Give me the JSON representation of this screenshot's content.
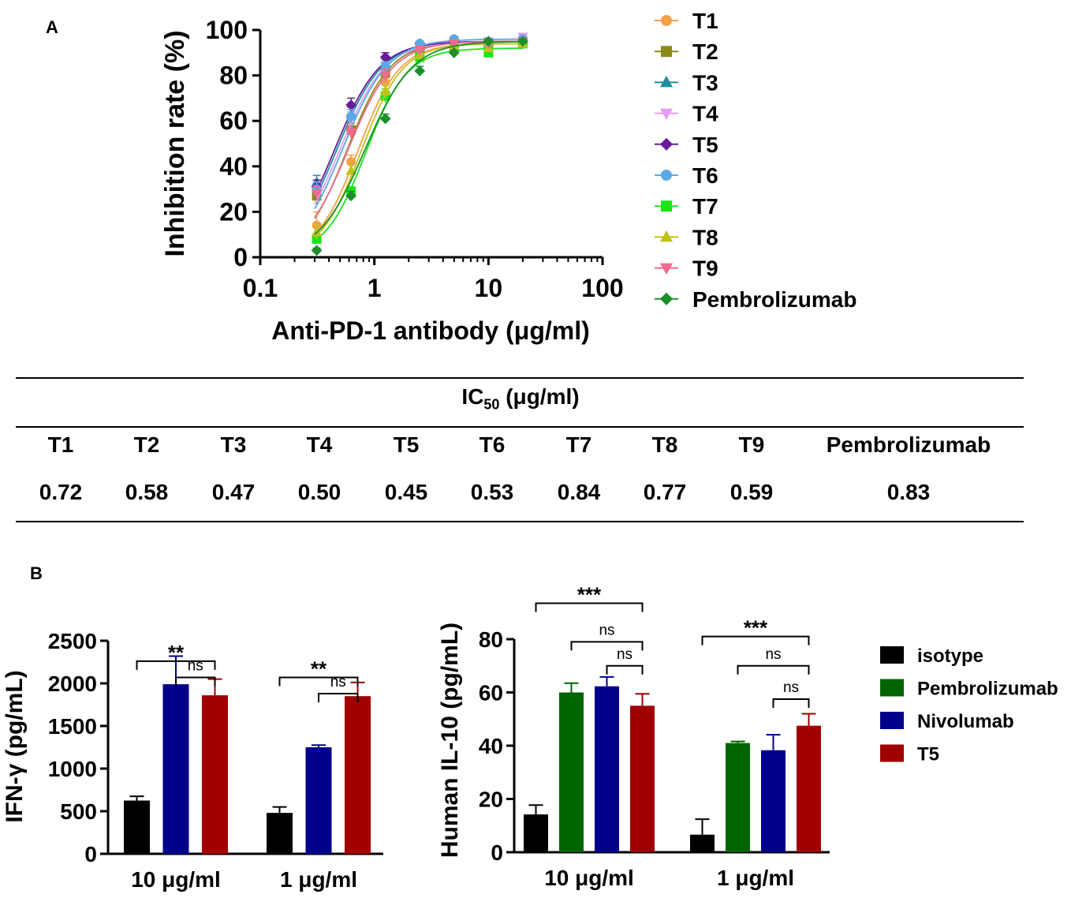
{
  "panel_labels": {
    "a": "A",
    "b": "B"
  },
  "ic50_table": {
    "title_prefix": "IC",
    "title_sub": "50",
    "title_suffix": " (μg/ml)",
    "headers": [
      "T1",
      "T2",
      "T3",
      "T4",
      "T5",
      "T6",
      "T7",
      "T8",
      "T9",
      "Pembrolizumab"
    ],
    "values": [
      "0.72",
      "0.58",
      "0.47",
      "0.50",
      "0.45",
      "0.53",
      "0.84",
      "0.77",
      "0.59",
      "0.83"
    ]
  },
  "chart_data": [
    {
      "type": "line",
      "panel": "A",
      "xlabel": "Anti-PD-1 antibody (μg/ml)",
      "ylabel": "Inhibition rate (%)",
      "xscale": "log",
      "xlim": [
        0.1,
        100
      ],
      "ylim": [
        0,
        100
      ],
      "xticks": [
        "0.1",
        "1",
        "10",
        "100"
      ],
      "yticks": [
        "0",
        "20",
        "40",
        "60",
        "80",
        "100"
      ],
      "x": [
        0.3125,
        0.625,
        1.25,
        2.5,
        5,
        10,
        20
      ],
      "legend_position": "right",
      "series": [
        {
          "name": "T1",
          "color": "#f5a04b",
          "marker": "circle",
          "ec50": 0.72,
          "top": 94,
          "hill": 2.4,
          "values": [
            14,
            42,
            77,
            91,
            93,
            91,
            94
          ],
          "errors": [
            6,
            3,
            4,
            2,
            1,
            1,
            1
          ]
        },
        {
          "name": "T2",
          "color": "#8b8b17",
          "marker": "square",
          "ec50": 0.58,
          "top": 95,
          "hill": 2.3,
          "values": [
            27,
            56,
            81,
            91,
            94,
            94,
            95
          ],
          "errors": [
            4,
            3,
            3,
            2,
            1,
            1,
            1
          ]
        },
        {
          "name": "T3",
          "color": "#1f8fa0",
          "marker": "triangle-up",
          "ec50": 0.47,
          "top": 95,
          "hill": 2.2,
          "values": [
            33,
            63,
            85,
            93,
            96,
            95,
            96
          ],
          "errors": [
            3,
            3,
            2,
            1,
            1,
            1,
            1
          ]
        },
        {
          "name": "T4",
          "color": "#e39ff0",
          "marker": "triangle-down",
          "ec50": 0.5,
          "top": 95,
          "hill": 2.2,
          "values": [
            30,
            61,
            84,
            93,
            95,
            95,
            97
          ],
          "errors": [
            3,
            3,
            2,
            1,
            1,
            1,
            1
          ]
        },
        {
          "name": "T5",
          "color": "#6a1b9a",
          "marker": "diamond",
          "ec50": 0.45,
          "top": 95,
          "hill": 2.2,
          "values": [
            31,
            67,
            88,
            94,
            95,
            95,
            95
          ],
          "errors": [
            3,
            3,
            2,
            1,
            1,
            1,
            1
          ]
        },
        {
          "name": "T6",
          "color": "#5aa9e6",
          "marker": "circle",
          "ec50": 0.53,
          "top": 96,
          "hill": 2.2,
          "values": [
            30,
            62,
            84,
            94,
            96,
            94,
            96
          ],
          "errors": [
            3,
            3,
            2,
            1,
            1,
            1,
            1
          ]
        },
        {
          "name": "T7",
          "color": "#19e619",
          "marker": "square",
          "ec50": 0.84,
          "top": 92,
          "hill": 2.4,
          "values": [
            8,
            29,
            71,
            88,
            92,
            90,
            94
          ],
          "errors": [
            2,
            2,
            3,
            2,
            1,
            1,
            1
          ]
        },
        {
          "name": "T8",
          "color": "#c2c21a",
          "marker": "triangle-up",
          "ec50": 0.77,
          "top": 94,
          "hill": 2.4,
          "values": [
            11,
            38,
            73,
            89,
            93,
            92,
            94
          ],
          "errors": [
            3,
            3,
            3,
            2,
            1,
            1,
            1
          ]
        },
        {
          "name": "T9",
          "color": "#f06b8f",
          "marker": "triangle-down",
          "ec50": 0.59,
          "top": 95,
          "hill": 2.2,
          "values": [
            28,
            55,
            80,
            91,
            94,
            94,
            95
          ],
          "errors": [
            3,
            3,
            3,
            2,
            1,
            1,
            1
          ]
        },
        {
          "name": "Pembrolizumab",
          "color": "#1a8f2a",
          "marker": "diamond",
          "ec50": 0.83,
          "top": 95,
          "hill": 2.1,
          "values": [
            3,
            27,
            61,
            82,
            90,
            95,
            95
          ],
          "errors": [
            1,
            2,
            2,
            2,
            1,
            1,
            1
          ]
        }
      ]
    },
    {
      "type": "bar",
      "panel": "B-left",
      "ylabel": "IFN-γ (pg/mL)",
      "ylim": [
        0,
        2500
      ],
      "yticks": [
        "0",
        "500",
        "1000",
        "1500",
        "2000",
        "2500"
      ],
      "categories": [
        "10 μg/ml",
        "1 μg/ml"
      ],
      "series": [
        {
          "name": "isotype",
          "color": "#000000",
          "values": [
            625,
            480
          ],
          "errors": [
            50,
            70
          ]
        },
        {
          "name": "Nivolumab",
          "color": "#00008b",
          "values": [
            1990,
            1250
          ],
          "errors": [
            330,
            25
          ]
        },
        {
          "name": "T5",
          "color": "#a00000",
          "values": [
            1860,
            1850
          ],
          "errors": [
            190,
            160
          ]
        }
      ],
      "brackets": [
        {
          "cat": 0,
          "from": "isotype",
          "to": "T5",
          "label": "**",
          "y": 2260
        },
        {
          "cat": 0,
          "from": "Nivolumab",
          "to": "T5",
          "label": "ns",
          "y": 2070
        },
        {
          "cat": 1,
          "from": "isotype",
          "to": "T5",
          "label": "**",
          "y": 2070
        },
        {
          "cat": 1,
          "from": "Nivolumab",
          "to": "T5",
          "label": "ns",
          "y": 1880
        }
      ]
    },
    {
      "type": "bar",
      "panel": "B-right",
      "ylabel": "Human IL-10 (pg/mL)",
      "ylim": [
        0,
        80
      ],
      "yticks": [
        "0",
        "20",
        "40",
        "60",
        "80"
      ],
      "categories": [
        "10 μg/ml",
        "1 μg/ml"
      ],
      "legend_position": "right",
      "series": [
        {
          "name": "isotype",
          "color": "#000000",
          "values": [
            14.2,
            6.6
          ],
          "errors": [
            3.5,
            5.8
          ]
        },
        {
          "name": "Pembrolizumab",
          "color": "#006400",
          "values": [
            60,
            41
          ],
          "errors": [
            3.5,
            0.6
          ]
        },
        {
          "name": "Nivolumab",
          "color": "#00008b",
          "values": [
            62.3,
            38.3
          ],
          "errors": [
            3.5,
            5.8
          ]
        },
        {
          "name": "T5",
          "color": "#a00000",
          "values": [
            55,
            47.5
          ],
          "errors": [
            4.5,
            4.5
          ]
        }
      ],
      "brackets": [
        {
          "cat": 0,
          "from": "isotype",
          "to": "T5",
          "label": "***",
          "y": 93.5
        },
        {
          "cat": 0,
          "from": "Pembrolizumab",
          "to": "T5",
          "label": "ns",
          "y": 79
        },
        {
          "cat": 0,
          "from": "Nivolumab",
          "to": "T5",
          "label": "ns",
          "y": 70
        },
        {
          "cat": 1,
          "from": "isotype",
          "to": "T5",
          "label": "***",
          "y": 81
        },
        {
          "cat": 1,
          "from": "Pembrolizumab",
          "to": "T5",
          "label": "ns",
          "y": 70
        },
        {
          "cat": 1,
          "from": "Nivolumab",
          "to": "T5",
          "label": "ns",
          "y": 57.5
        }
      ]
    }
  ]
}
